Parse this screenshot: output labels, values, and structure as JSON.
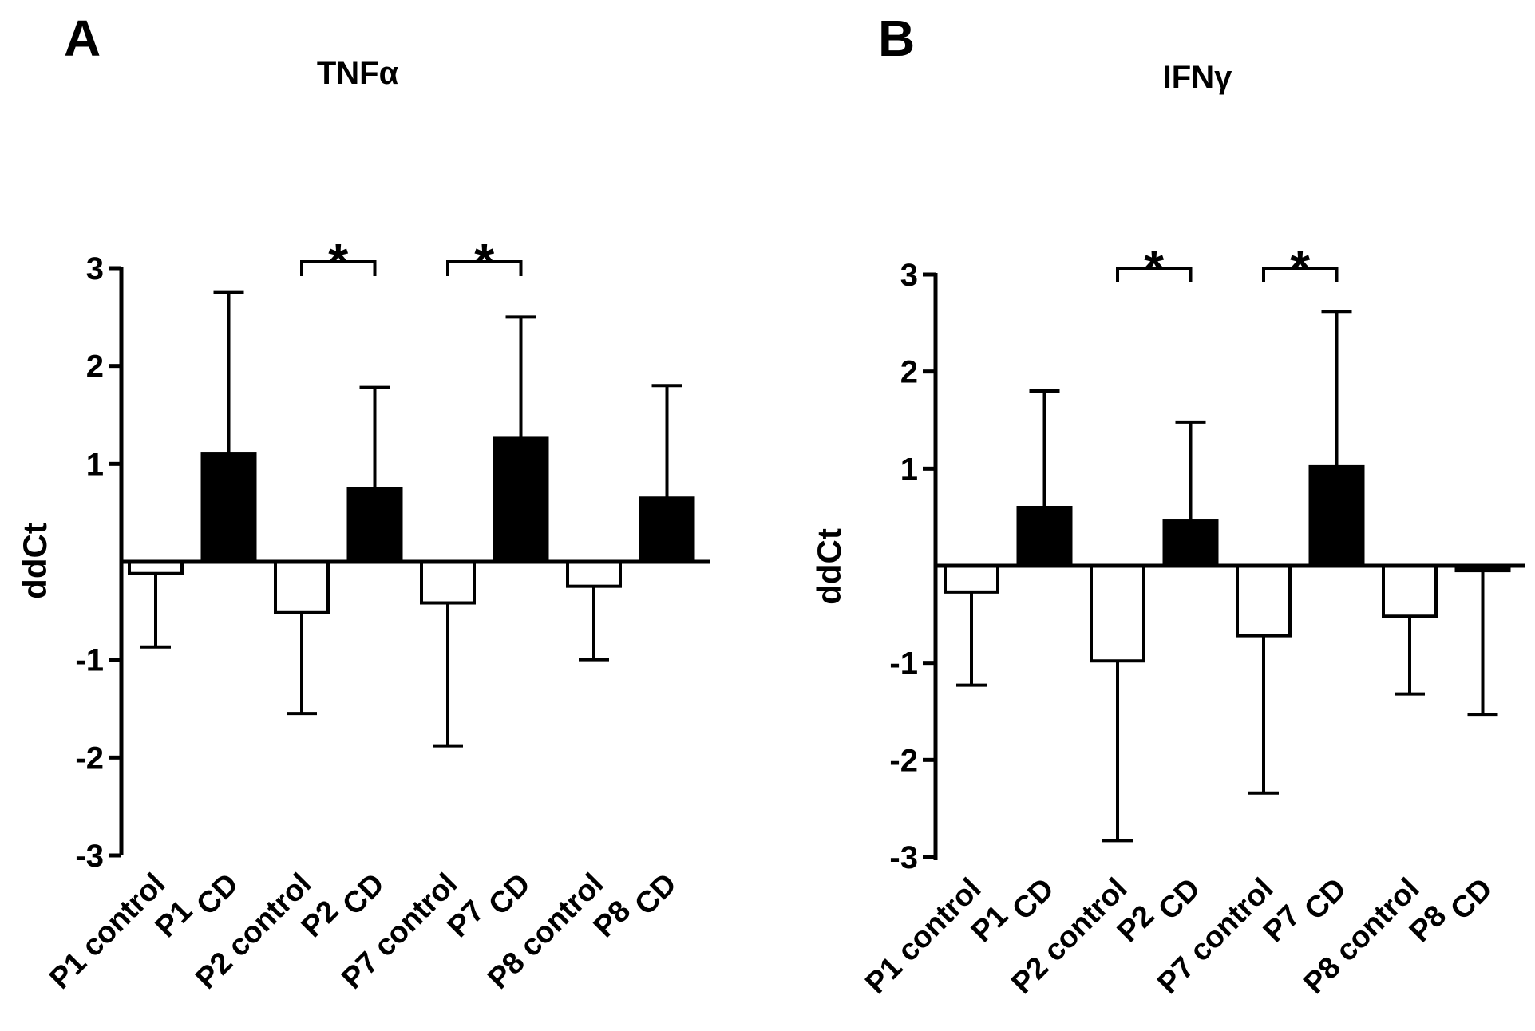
{
  "colors": {
    "axis": "#000000",
    "control_fill": "#ffffff",
    "cd_fill": "#000000"
  },
  "chart_data": [
    {
      "type": "bar",
      "panel": "A",
      "title": "TNFα",
      "ylabel": "ddCt",
      "xlabel": "",
      "ylim": [
        -3,
        3
      ],
      "yticks": [
        3,
        2,
        1,
        -1,
        -2,
        -3
      ],
      "ytick_labels": [
        "3",
        "2",
        "1",
        "-1",
        "-2",
        "-3"
      ],
      "categories": [
        "P1 control",
        "P1 CD",
        "P2 control",
        "P2 CD",
        "P7 control",
        "P7 CD",
        "P8 control",
        "P8 CD"
      ],
      "category_lines": [
        [
          "P1 control",
          "P1"
        ],
        [
          "CD",
          ""
        ],
        [
          "P2 control",
          "P2"
        ],
        [
          "CD",
          ""
        ],
        [
          "P7 control",
          "P7"
        ],
        [
          "CD",
          ""
        ],
        [
          "P8 control",
          "P8"
        ],
        [
          "CD",
          ""
        ]
      ],
      "values": [
        -0.12,
        1.1,
        -0.52,
        0.75,
        -0.42,
        1.26,
        -0.25,
        0.65
      ],
      "errors": [
        0.75,
        1.65,
        1.03,
        1.03,
        1.46,
        1.24,
        0.75,
        1.15
      ],
      "fill": [
        "white",
        "black",
        "white",
        "black",
        "white",
        "black",
        "white",
        "black"
      ],
      "significance": [
        {
          "from": 2,
          "to": 3,
          "label": "*"
        },
        {
          "from": 4,
          "to": 5,
          "label": "*"
        }
      ],
      "grid": false
    },
    {
      "type": "bar",
      "panel": "B",
      "title": "IFNγ",
      "ylabel": "ddCt",
      "xlabel": "",
      "ylim": [
        -3,
        3
      ],
      "yticks": [
        3,
        2,
        1,
        -1,
        -2,
        -3
      ],
      "ytick_labels": [
        "3",
        "2",
        "1",
        "-1",
        "-2",
        "-3"
      ],
      "categories": [
        "P1 control",
        "P1 CD",
        "P2 control",
        "P2 CD",
        "P7 control",
        "P7 CD",
        "P8 control",
        "P8 CD"
      ],
      "category_lines": [
        [
          "P1 control",
          "P1"
        ],
        [
          "CD",
          ""
        ],
        [
          "P2 control",
          "P2"
        ],
        [
          "CD",
          ""
        ],
        [
          "P7 control",
          "P7"
        ],
        [
          "CD",
          ""
        ],
        [
          "P8 control",
          "P8"
        ],
        [
          "CD",
          ""
        ]
      ],
      "values": [
        -0.27,
        0.6,
        -0.98,
        0.46,
        -0.72,
        1.02,
        -0.52,
        -0.05
      ],
      "errors": [
        0.96,
        1.2,
        1.85,
        1.02,
        1.62,
        1.6,
        0.8,
        1.48
      ],
      "fill": [
        "white",
        "black",
        "white",
        "black",
        "white",
        "black",
        "white",
        "black"
      ],
      "significance": [
        {
          "from": 2,
          "to": 3,
          "label": "*"
        },
        {
          "from": 4,
          "to": 5,
          "label": "*"
        }
      ],
      "grid": false
    }
  ]
}
